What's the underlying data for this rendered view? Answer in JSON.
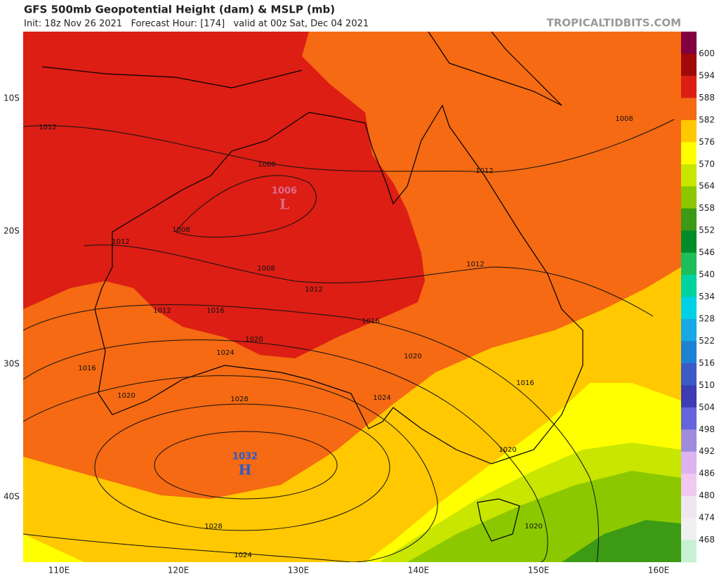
{
  "header": {
    "title": "GFS 500mb Geopotential Height (dam) & MSLP (mb)",
    "subtitle": "Init: 18z Nov 26 2021   Forecast Hour: [174]   valid at 00z Sat, Dec 04 2021",
    "site": "TROPICALTIDBITS.COM"
  },
  "map": {
    "lat_labels": [
      "10S",
      "20S",
      "30S",
      "40S"
    ],
    "lon_labels": [
      "110E",
      "120E",
      "130E",
      "140E",
      "150E",
      "160E"
    ],
    "isobar_labels": [
      "1012",
      "1008",
      "1008",
      "1012",
      "1008",
      "1012",
      "1012",
      "1016",
      "1016",
      "1020",
      "1024",
      "1016",
      "1020",
      "1020",
      "1028",
      "1024",
      "1016",
      "1020",
      "1028",
      "1024",
      "1020",
      "1008",
      "1012",
      "1012"
    ],
    "centers": [
      {
        "symbol": "L",
        "value": "1006"
      },
      {
        "symbol": "H",
        "value": "1032"
      }
    ]
  },
  "colorbar": {
    "labels": [
      "600",
      "594",
      "588",
      "582",
      "576",
      "570",
      "564",
      "558",
      "552",
      "546",
      "540",
      "534",
      "528",
      "522",
      "516",
      "510",
      "504",
      "498",
      "492",
      "486",
      "480",
      "474",
      "468"
    ],
    "colors": [
      "#800040",
      "#a00a0a",
      "#dc1e14",
      "#f56a12",
      "#ffc800",
      "#ffff00",
      "#c8e600",
      "#8cc800",
      "#3c9a14",
      "#008c28",
      "#1ebe5a",
      "#00d2a0",
      "#00d2e6",
      "#18a8e6",
      "#1e82d2",
      "#3c5ac8",
      "#3c3cb4",
      "#6464dc",
      "#a08cdc",
      "#dcb4f0",
      "#f0c8f0",
      "#f0e6f0",
      "#f0f0f0",
      "#c8f0d2"
    ]
  }
}
